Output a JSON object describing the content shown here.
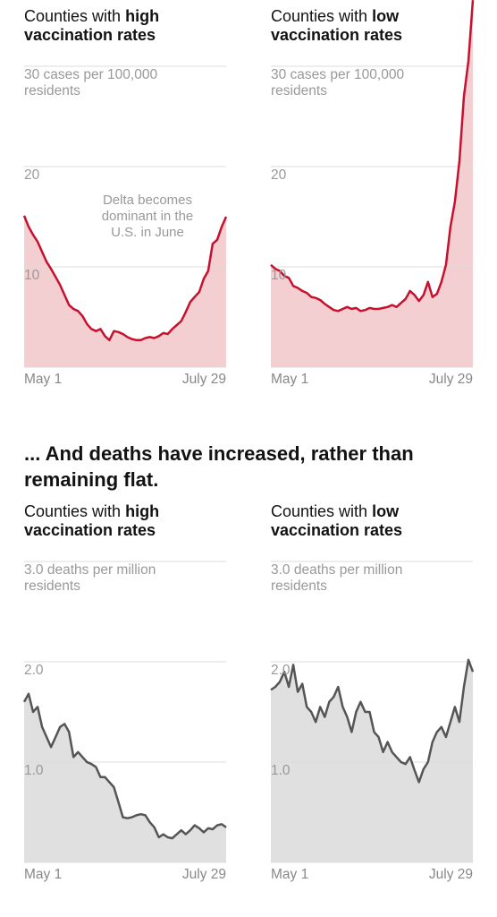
{
  "heading": "... And deaths have increased, rather than remaining flat.",
  "chart_data": [
    {
      "type": "area",
      "title": {
        "plain": "Counties with",
        "bold": "high vaccination rates"
      },
      "annotation": "Delta becomes dominant in the U.S. in June",
      "categories": [
        "May 1",
        null,
        null,
        null,
        null,
        null,
        null,
        null,
        null,
        null,
        null,
        null,
        null,
        null,
        null,
        null,
        null,
        null,
        null,
        null,
        null,
        null,
        null,
        null,
        null,
        null,
        null,
        null,
        null,
        null,
        null,
        null,
        null,
        null,
        null,
        null,
        null,
        null,
        null,
        null,
        null,
        null,
        null,
        null,
        null,
        "July 29"
      ],
      "values": [
        15.1,
        14.0,
        13.2,
        12.5,
        11.5,
        10.5,
        9.8,
        9.0,
        8.2,
        7.2,
        6.2,
        5.8,
        5.6,
        5.1,
        4.3,
        3.8,
        3.6,
        3.8,
        3.1,
        2.7,
        3.6,
        3.5,
        3.3,
        3.0,
        2.8,
        2.7,
        2.7,
        2.9,
        3.0,
        2.9,
        3.1,
        3.4,
        3.3,
        3.8,
        4.2,
        4.6,
        5.5,
        6.5,
        7.0,
        7.5,
        8.8,
        9.6,
        12.3,
        12.7,
        14.0,
        15.0
      ],
      "color": "#c8102e",
      "fill_color": "#f3cfd1",
      "grid": true,
      "ylim": [
        0,
        30
      ],
      "yticks": [
        10,
        20,
        {
          "value": 30,
          "label": "30 cases per 100,000 residents"
        }
      ]
    },
    {
      "type": "area",
      "title": {
        "plain": "Counties with",
        "bold": "low vaccination rates"
      },
      "categories": [
        "May 1",
        null,
        null,
        null,
        null,
        null,
        null,
        null,
        null,
        null,
        null,
        null,
        null,
        null,
        null,
        null,
        null,
        null,
        null,
        null,
        null,
        null,
        null,
        null,
        null,
        null,
        null,
        null,
        null,
        null,
        null,
        null,
        null,
        null,
        null,
        null,
        null,
        null,
        null,
        null,
        null,
        null,
        null,
        null,
        null,
        "July 29"
      ],
      "values": [
        10.2,
        9.8,
        9.6,
        9.1,
        8.9,
        8.1,
        7.9,
        7.6,
        7.4,
        7.0,
        6.9,
        6.7,
        6.3,
        6.0,
        5.7,
        5.6,
        5.8,
        6.0,
        5.8,
        5.9,
        5.6,
        5.7,
        5.9,
        5.8,
        5.8,
        5.9,
        6.0,
        6.2,
        6.0,
        6.4,
        6.8,
        7.6,
        7.2,
        6.6,
        7.2,
        8.5,
        7.0,
        7.3,
        8.5,
        10.2,
        14.0,
        16.5,
        20.5,
        27.0,
        30.5,
        36.6
      ],
      "color": "#c8102e",
      "fill_color": "#f3cfd1",
      "grid": true,
      "ylim": [
        0,
        30
      ],
      "yticks": [
        10,
        20,
        {
          "value": 30,
          "label": "30 cases per 100,000 residents"
        }
      ]
    },
    {
      "type": "area",
      "title": {
        "plain": "Counties with",
        "bold": "high vaccination rates"
      },
      "categories": [
        "May 1",
        null,
        null,
        null,
        null,
        null,
        null,
        null,
        null,
        null,
        null,
        null,
        null,
        null,
        null,
        null,
        null,
        null,
        null,
        null,
        null,
        null,
        null,
        null,
        null,
        null,
        null,
        null,
        null,
        null,
        null,
        null,
        null,
        null,
        null,
        null,
        null,
        null,
        null,
        null,
        null,
        null,
        null,
        null,
        null,
        "July 29"
      ],
      "values": [
        1.6,
        1.68,
        1.5,
        1.55,
        1.35,
        1.25,
        1.15,
        1.25,
        1.35,
        1.38,
        1.3,
        1.05,
        1.1,
        1.05,
        1.0,
        0.98,
        0.95,
        0.85,
        0.85,
        0.8,
        0.75,
        0.6,
        0.45,
        0.44,
        0.45,
        0.47,
        0.48,
        0.47,
        0.4,
        0.35,
        0.25,
        0.28,
        0.25,
        0.24,
        0.28,
        0.32,
        0.28,
        0.32,
        0.37,
        0.34,
        0.3,
        0.34,
        0.33,
        0.37,
        0.38,
        0.35
      ],
      "color": "#555555",
      "fill_color": "#e0e0e0",
      "grid": true,
      "ylim": [
        0,
        3
      ],
      "yticks": [
        {
          "value": 1,
          "label": "1.0"
        },
        {
          "value": 2,
          "label": "2.0"
        },
        {
          "value": 3,
          "label": "3.0 deaths per million residents"
        }
      ]
    },
    {
      "type": "area",
      "title": {
        "plain": "Counties with",
        "bold": "low vaccination rates"
      },
      "categories": [
        "May 1",
        null,
        null,
        null,
        null,
        null,
        null,
        null,
        null,
        null,
        null,
        null,
        null,
        null,
        null,
        null,
        null,
        null,
        null,
        null,
        null,
        null,
        null,
        null,
        null,
        null,
        null,
        null,
        null,
        null,
        null,
        null,
        null,
        null,
        null,
        null,
        null,
        null,
        null,
        null,
        null,
        null,
        null,
        null,
        null,
        "July 29"
      ],
      "values": [
        1.72,
        1.75,
        1.8,
        1.9,
        1.75,
        1.97,
        1.7,
        1.78,
        1.55,
        1.5,
        1.4,
        1.55,
        1.45,
        1.6,
        1.65,
        1.75,
        1.55,
        1.45,
        1.3,
        1.5,
        1.6,
        1.5,
        1.5,
        1.3,
        1.25,
        1.1,
        1.2,
        1.1,
        1.05,
        1.0,
        0.98,
        1.05,
        0.92,
        0.8,
        0.93,
        1.0,
        1.2,
        1.3,
        1.35,
        1.25,
        1.4,
        1.55,
        1.4,
        1.75,
        2.02,
        1.9
      ],
      "color": "#555555",
      "fill_color": "#e0e0e0",
      "grid": true,
      "ylim": [
        0,
        3
      ],
      "yticks": [
        {
          "value": 1,
          "label": "1.0"
        },
        {
          "value": 2,
          "label": "2.0"
        },
        {
          "value": 3,
          "label": "3.0 deaths per million residents"
        }
      ]
    }
  ]
}
